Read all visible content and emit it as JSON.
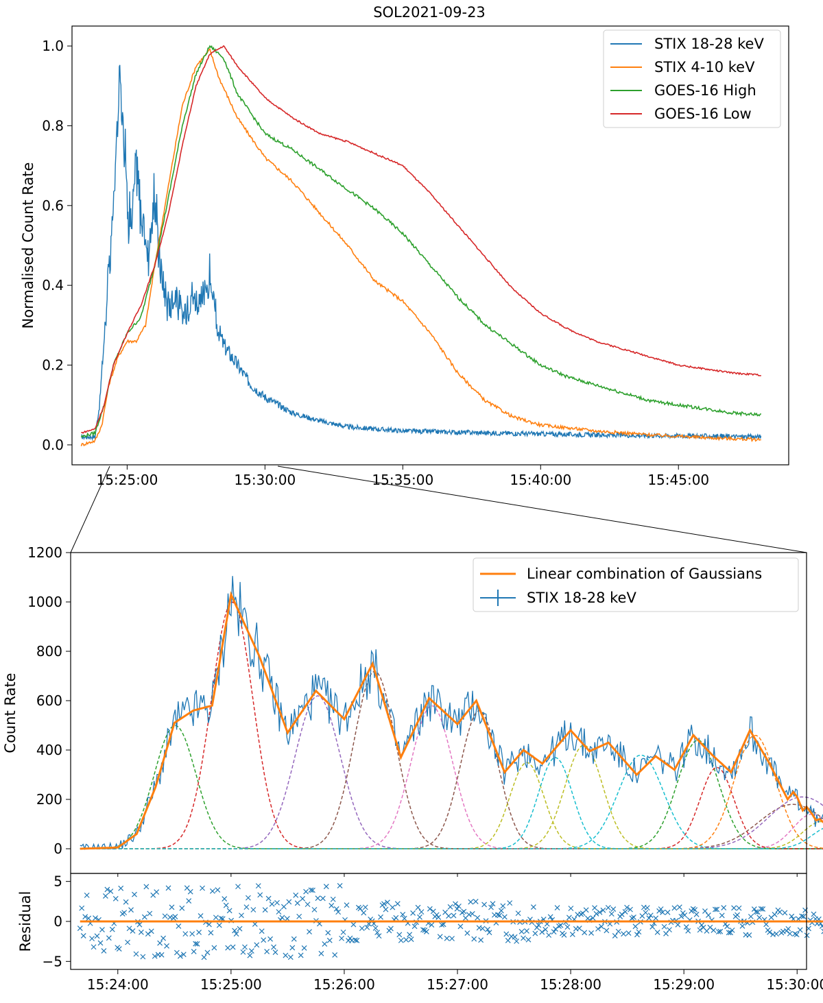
{
  "figure": {
    "title": "SOL2021-09-23"
  },
  "colors": {
    "blue": "#1f77b4",
    "orange": "#ff7f0e",
    "green": "#2ca02c",
    "red": "#d62728",
    "purple": "#9467bd",
    "brown": "#8c564b",
    "pink": "#e377c2",
    "olive": "#bcbd22",
    "cyan": "#17becf"
  },
  "chart_data": [
    {
      "type": "line",
      "panel": "top",
      "title": "SOL2021-09-23",
      "xlabel": "",
      "ylabel": "Normalised Count Rate",
      "xlim": [
        "15:23:00",
        "15:49:00"
      ],
      "ylim": [
        -0.05,
        1.05
      ],
      "x_ticks": [
        "15:25:00",
        "15:30:00",
        "15:35:00",
        "15:40:00",
        "15:45:00"
      ],
      "y_ticks": [
        "0.0",
        "0.2",
        "0.4",
        "0.6",
        "0.8",
        "1.0"
      ],
      "legend_position": "top-right",
      "series": [
        {
          "name": "STIX 18-28 keV",
          "color": "#1f77b4",
          "points": [
            [
              "15:23:20",
              0.02
            ],
            [
              "15:23:50",
              0.02
            ],
            [
              "15:24:00",
              0.1
            ],
            [
              "15:24:15",
              0.35
            ],
            [
              "15:24:25",
              0.5
            ],
            [
              "15:24:30",
              0.6
            ],
            [
              "15:24:40",
              0.8
            ],
            [
              "15:24:45",
              1.0
            ],
            [
              "15:24:50",
              0.85
            ],
            [
              "15:25:00",
              0.62
            ],
            [
              "15:25:10",
              0.55
            ],
            [
              "15:25:20",
              0.7
            ],
            [
              "15:25:30",
              0.58
            ],
            [
              "15:25:45",
              0.48
            ],
            [
              "15:26:00",
              0.62
            ],
            [
              "15:26:15",
              0.42
            ],
            [
              "15:26:30",
              0.35
            ],
            [
              "15:26:45",
              0.38
            ],
            [
              "15:27:00",
              0.32
            ],
            [
              "15:27:20",
              0.38
            ],
            [
              "15:27:40",
              0.35
            ],
            [
              "15:28:00",
              0.42
            ],
            [
              "15:28:15",
              0.3
            ],
            [
              "15:28:30",
              0.25
            ],
            [
              "15:29:00",
              0.2
            ],
            [
              "15:29:30",
              0.15
            ],
            [
              "15:30:00",
              0.12
            ],
            [
              "15:31:00",
              0.08
            ],
            [
              "15:32:00",
              0.06
            ],
            [
              "15:33:00",
              0.045
            ],
            [
              "15:35:00",
              0.035
            ],
            [
              "15:38:00",
              0.03
            ],
            [
              "15:42:00",
              0.025
            ],
            [
              "15:46:00",
              0.022
            ],
            [
              "15:48:00",
              0.02
            ]
          ]
        },
        {
          "name": "STIX 4-10 keV",
          "color": "#ff7f0e",
          "points": [
            [
              "15:23:20",
              0.0
            ],
            [
              "15:23:50",
              0.01
            ],
            [
              "15:24:05",
              0.05
            ],
            [
              "15:24:20",
              0.15
            ],
            [
              "15:24:40",
              0.22
            ],
            [
              "15:25:00",
              0.26
            ],
            [
              "15:25:20",
              0.26
            ],
            [
              "15:25:40",
              0.3
            ],
            [
              "15:26:00",
              0.45
            ],
            [
              "15:26:30",
              0.65
            ],
            [
              "15:27:00",
              0.85
            ],
            [
              "15:27:30",
              0.95
            ],
            [
              "15:28:00",
              0.99
            ],
            [
              "15:28:20",
              0.92
            ],
            [
              "15:29:00",
              0.82
            ],
            [
              "15:30:00",
              0.72
            ],
            [
              "15:31:00",
              0.66
            ],
            [
              "15:32:00",
              0.58
            ],
            [
              "15:33:00",
              0.5
            ],
            [
              "15:34:00",
              0.41
            ],
            [
              "15:35:00",
              0.36
            ],
            [
              "15:36:00",
              0.28
            ],
            [
              "15:37:00",
              0.18
            ],
            [
              "15:38:00",
              0.11
            ],
            [
              "15:39:00",
              0.07
            ],
            [
              "15:40:00",
              0.05
            ],
            [
              "15:42:00",
              0.035
            ],
            [
              "15:44:00",
              0.025
            ],
            [
              "15:46:00",
              0.018
            ],
            [
              "15:48:00",
              0.013
            ]
          ]
        },
        {
          "name": "GOES-16 High",
          "color": "#2ca02c",
          "points": [
            [
              "15:23:20",
              0.02
            ],
            [
              "15:23:50",
              0.03
            ],
            [
              "15:24:10",
              0.1
            ],
            [
              "15:24:30",
              0.2
            ],
            [
              "15:25:00",
              0.28
            ],
            [
              "15:25:30",
              0.32
            ],
            [
              "15:26:00",
              0.45
            ],
            [
              "15:26:30",
              0.62
            ],
            [
              "15:27:00",
              0.8
            ],
            [
              "15:27:30",
              0.93
            ],
            [
              "15:28:00",
              1.0
            ],
            [
              "15:28:30",
              0.97
            ],
            [
              "15:29:00",
              0.88
            ],
            [
              "15:30:00",
              0.78
            ],
            [
              "15:31:00",
              0.74
            ],
            [
              "15:32:00",
              0.69
            ],
            [
              "15:33:00",
              0.64
            ],
            [
              "15:34:00",
              0.59
            ],
            [
              "15:35:00",
              0.53
            ],
            [
              "15:36:00",
              0.45
            ],
            [
              "15:37:00",
              0.37
            ],
            [
              "15:38:00",
              0.3
            ],
            [
              "15:39:00",
              0.25
            ],
            [
              "15:40:00",
              0.2
            ],
            [
              "15:41:00",
              0.17
            ],
            [
              "15:42:00",
              0.15
            ],
            [
              "15:43:00",
              0.13
            ],
            [
              "15:44:00",
              0.11
            ],
            [
              "15:45:00",
              0.1
            ],
            [
              "15:46:00",
              0.09
            ],
            [
              "15:47:00",
              0.08
            ],
            [
              "15:48:00",
              0.075
            ]
          ]
        },
        {
          "name": "GOES-16 Low",
          "color": "#d62728",
          "points": [
            [
              "15:23:20",
              0.03
            ],
            [
              "15:23:50",
              0.04
            ],
            [
              "15:24:10",
              0.1
            ],
            [
              "15:24:30",
              0.2
            ],
            [
              "15:25:00",
              0.28
            ],
            [
              "15:25:30",
              0.35
            ],
            [
              "15:26:00",
              0.45
            ],
            [
              "15:26:30",
              0.58
            ],
            [
              "15:27:00",
              0.75
            ],
            [
              "15:27:30",
              0.9
            ],
            [
              "15:28:00",
              0.98
            ],
            [
              "15:28:30",
              1.0
            ],
            [
              "15:29:00",
              0.95
            ],
            [
              "15:30:00",
              0.87
            ],
            [
              "15:31:00",
              0.82
            ],
            [
              "15:32:00",
              0.78
            ],
            [
              "15:33:00",
              0.76
            ],
            [
              "15:34:00",
              0.73
            ],
            [
              "15:35:00",
              0.7
            ],
            [
              "15:36:00",
              0.63
            ],
            [
              "15:37:00",
              0.55
            ],
            [
              "15:38:00",
              0.47
            ],
            [
              "15:39:00",
              0.39
            ],
            [
              "15:40:00",
              0.33
            ],
            [
              "15:41:00",
              0.29
            ],
            [
              "15:42:00",
              0.26
            ],
            [
              "15:43:00",
              0.24
            ],
            [
              "15:44:00",
              0.22
            ],
            [
              "15:45:00",
              0.2
            ],
            [
              "15:46:00",
              0.19
            ],
            [
              "15:47:00",
              0.18
            ],
            [
              "15:48:00",
              0.175
            ]
          ]
        }
      ]
    },
    {
      "type": "line",
      "panel": "middle",
      "xlabel": "",
      "ylabel": "Count Rate",
      "xlim": [
        "15:23:35",
        "15:30:05"
      ],
      "ylim": [
        -100,
        1200
      ],
      "y_ticks": [
        "0",
        "200",
        "400",
        "600",
        "800",
        "1000",
        "1200"
      ],
      "legend_position": "top-right",
      "series": [
        {
          "name": "Linear combination of Gaussians",
          "color": "#ff7f0e",
          "points": [
            [
              "15:23:40",
              0
            ],
            [
              "15:24:00",
              5
            ],
            [
              "15:24:10",
              60
            ],
            [
              "15:24:20",
              250
            ],
            [
              "15:24:30",
              510
            ],
            [
              "15:24:40",
              560
            ],
            [
              "15:24:50",
              580
            ],
            [
              "15:25:00",
              1030
            ],
            [
              "15:25:15",
              780
            ],
            [
              "15:25:30",
              470
            ],
            [
              "15:25:45",
              640
            ],
            [
              "15:26:00",
              525
            ],
            [
              "15:26:15",
              750
            ],
            [
              "15:26:30",
              370
            ],
            [
              "15:26:45",
              610
            ],
            [
              "15:27:00",
              505
            ],
            [
              "15:27:10",
              600
            ],
            [
              "15:27:25",
              310
            ],
            [
              "15:27:35",
              400
            ],
            [
              "15:27:45",
              345
            ],
            [
              "15:28:00",
              480
            ],
            [
              "15:28:10",
              395
            ],
            [
              "15:28:20",
              430
            ],
            [
              "15:28:35",
              300
            ],
            [
              "15:28:45",
              375
            ],
            [
              "15:28:55",
              320
            ],
            [
              "15:29:05",
              460
            ],
            [
              "15:29:15",
              380
            ],
            [
              "15:29:25",
              310
            ],
            [
              "15:29:35",
              480
            ],
            [
              "15:29:45",
              350
            ],
            [
              "15:29:55",
              200
            ],
            [
              "15:29:58",
              230
            ],
            [
              "15:30:00",
              210
            ],
            [
              "15:30:03",
              155
            ],
            [
              "15:30:05",
              170
            ],
            [
              "15:30:08",
              140
            ],
            [
              "15:30:10",
              115
            ],
            [
              "15:30:12",
              120
            ],
            [
              "15:30:15",
              100
            ],
            [
              "15:30:18",
              85
            ]
          ]
        },
        {
          "name": "STIX 18-28 keV",
          "color": "#1f77b4"
        }
      ]
    },
    {
      "type": "scatter",
      "panel": "bottom",
      "xlabel": "",
      "ylabel": "Residual",
      "xlim": [
        "15:23:35",
        "15:30:05"
      ],
      "ylim": [
        -6,
        6
      ],
      "x_ticks": [
        "15:24:00",
        "15:25:00",
        "15:26:00",
        "15:27:00",
        "15:28:00",
        "15:29:00",
        "15:30:00"
      ],
      "y_ticks": [
        "5",
        "0",
        "−5"
      ],
      "series": [
        {
          "color": "#1f77b4",
          "marker": "x"
        },
        {
          "color": "#ff7f0e",
          "zero_line": true
        }
      ]
    }
  ]
}
